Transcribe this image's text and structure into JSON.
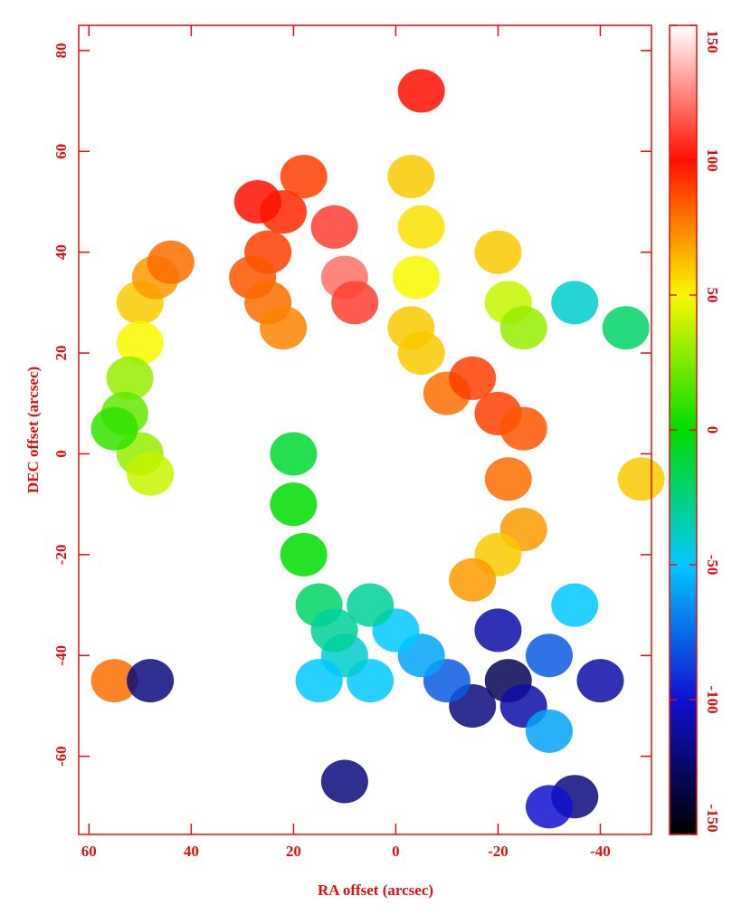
{
  "chart_data": {
    "type": "velocity-map",
    "xlabel": "RA offset (arcsec)",
    "ylabel": "DEC offset (arcsec)",
    "xlim": [
      62,
      -50
    ],
    "xticks": [
      60,
      40,
      20,
      0,
      -20,
      -40
    ],
    "ylim": [
      -75.5,
      85
    ],
    "yticks": [
      80,
      60,
      40,
      20,
      0,
      -20,
      -40,
      -60
    ],
    "clim": [
      -150,
      150
    ],
    "cticks": [
      150,
      100,
      50,
      0,
      -50,
      -100,
      -150
    ],
    "colormap": [
      "#000000",
      "#1010d0",
      "#00c8ff",
      "#00dd00",
      "#f8f800",
      "#ff1000",
      "#ffffff"
    ],
    "axis_color": "#e01010",
    "x": [
      50,
      47,
      44,
      50,
      52,
      53,
      50,
      48,
      55,
      25,
      28,
      22,
      18,
      12,
      10,
      8,
      25,
      22,
      27,
      -5,
      -3,
      -5,
      -4,
      -3,
      -20,
      -22,
      -25,
      -5,
      -10,
      -15,
      -20,
      -25,
      -22,
      -25,
      -20,
      -15,
      -20,
      -22,
      -25,
      -30,
      -35,
      -40,
      -30,
      -15,
      -10,
      -5,
      0,
      5,
      5,
      10,
      15,
      18,
      20,
      20,
      12,
      15,
      -35,
      -30,
      10,
      55,
      48,
      -48,
      -45,
      -35
    ],
    "y": [
      30,
      35,
      38,
      22,
      15,
      8,
      0,
      -4,
      5,
      40,
      35,
      48,
      55,
      45,
      35,
      30,
      30,
      25,
      50,
      72,
      55,
      45,
      35,
      25,
      40,
      30,
      25,
      20,
      12,
      15,
      8,
      5,
      -5,
      -15,
      -20,
      -25,
      -35,
      -45,
      -50,
      -40,
      -30,
      -45,
      -55,
      -50,
      -45,
      -40,
      -35,
      -30,
      -45,
      -40,
      -30,
      -20,
      -10,
      0,
      -35,
      -45,
      -68,
      -70,
      -65,
      -45,
      -45,
      -5,
      25,
      30
    ],
    "values": [
      60,
      70,
      80,
      50,
      30,
      20,
      30,
      40,
      10,
      90,
      85,
      95,
      90,
      110,
      120,
      110,
      80,
      75,
      100,
      100,
      60,
      55,
      50,
      60,
      60,
      40,
      30,
      60,
      80,
      90,
      90,
      85,
      80,
      70,
      60,
      70,
      -110,
      -130,
      -110,
      -80,
      -50,
      -110,
      -60,
      -120,
      -80,
      -60,
      -50,
      -30,
      -50,
      -40,
      -20,
      0,
      0,
      -10,
      -30,
      -50,
      -120,
      -100,
      -120,
      80,
      -120,
      60,
      -20,
      -40
    ]
  }
}
